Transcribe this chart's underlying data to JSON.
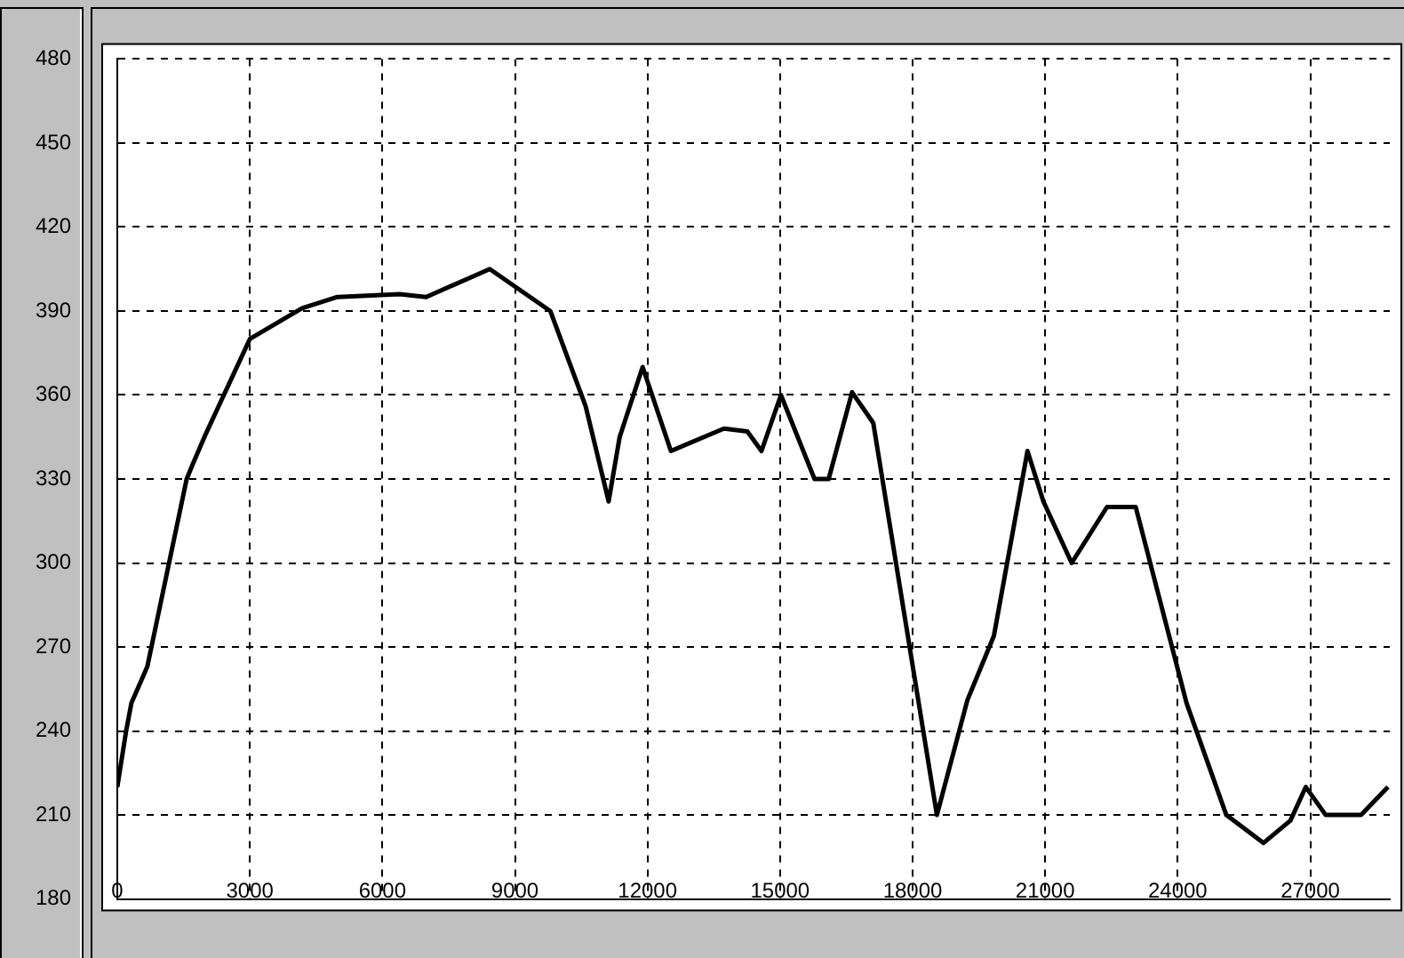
{
  "chart_data": {
    "type": "line",
    "x": [
      0,
      200,
      320,
      680,
      1570,
      1700,
      2000,
      3000,
      4180,
      4980,
      6390,
      6990,
      8430,
      9800,
      10600,
      11120,
      11370,
      11890,
      12530,
      13730,
      14260,
      14580,
      15020,
      15780,
      16100,
      16630,
      17110,
      18550,
      19240,
      19840,
      20600,
      20960,
      21600,
      22400,
      23050,
      24200,
      25100,
      25940,
      26550,
      26900,
      27350,
      28150,
      28760
    ],
    "series": [
      {
        "color": "#000000",
        "values": [
          220,
          240,
          250,
          263,
          330,
          335,
          346,
          380,
          391,
          395,
          396,
          395,
          405,
          390,
          356,
          322,
          345,
          370,
          340,
          348,
          347,
          340,
          360,
          330,
          330,
          361,
          350,
          210,
          251,
          274,
          340,
          322,
          300,
          320,
          320,
          250,
          210,
          200,
          208,
          220,
          210,
          210,
          220
        ]
      }
    ],
    "xlim": [
      0,
      28800
    ],
    "xticks": [
      0,
      3000,
      6000,
      9000,
      12000,
      15000,
      18000,
      21000,
      24000,
      27000
    ],
    "ylim": [
      180,
      480
    ],
    "yticks": [
      180,
      210,
      240,
      270,
      300,
      330,
      360,
      390,
      420,
      450,
      480
    ],
    "grid": true,
    "legend": false,
    "marker": "none",
    "line_style": "solid"
  }
}
